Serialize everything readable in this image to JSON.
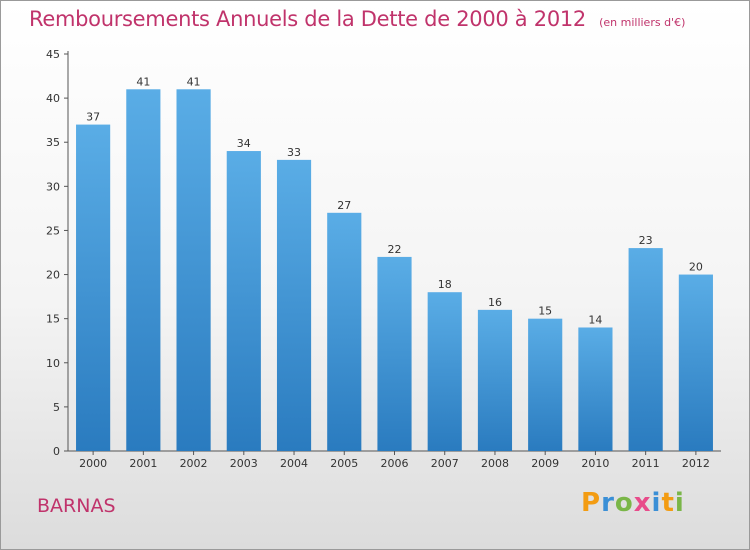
{
  "chart_data": {
    "type": "bar",
    "title": "Remboursements Annuels de la Dette de 2000 à 2012",
    "subtitle": "(en milliers d'€)",
    "xlabel": "",
    "ylabel": "",
    "categories": [
      "2000",
      "2001",
      "2002",
      "2003",
      "2004",
      "2005",
      "2006",
      "2007",
      "2008",
      "2009",
      "2010",
      "2011",
      "2012"
    ],
    "values": [
      37,
      41,
      41,
      34,
      33,
      27,
      22,
      18,
      16,
      15,
      14,
      23,
      20
    ],
    "ylim": [
      0,
      45
    ],
    "yticks": [
      0,
      5,
      10,
      15,
      20,
      25,
      30,
      35,
      40,
      45
    ],
    "grid": false,
    "legend": "none",
    "bar_color_top": "#5aade6",
    "bar_color_bottom": "#2a7bbf"
  },
  "footer": {
    "place": "BARNAS",
    "logo": "Proxiti"
  }
}
